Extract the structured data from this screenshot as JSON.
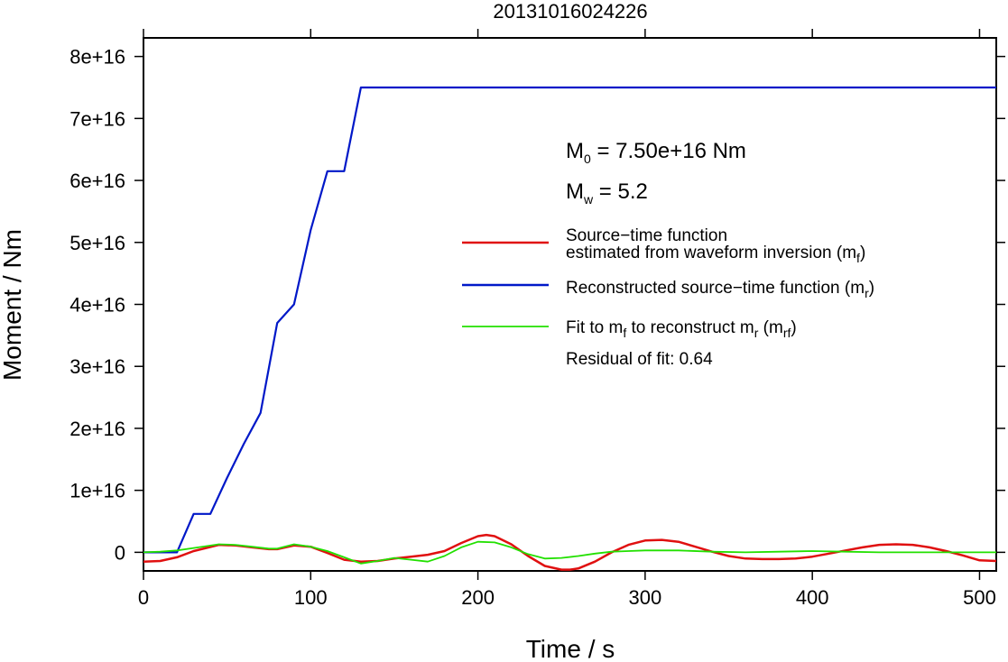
{
  "chart_data": {
    "type": "line",
    "title": "20131016024226",
    "xlabel": "Time / s",
    "ylabel": "Moment / Nm",
    "xlim": [
      0,
      510
    ],
    "ylim": [
      -3000000000000000,
      83000000000000000
    ],
    "x_ticks": [
      0,
      100,
      200,
      300,
      400,
      500
    ],
    "y_ticks": [
      0,
      1e+16,
      2e+16,
      3e+16,
      4e+16,
      5e+16,
      6e+16,
      7e+16,
      8e+16
    ],
    "x_tick_labels": [
      "0",
      "100",
      "200",
      "300",
      "400",
      "500"
    ],
    "y_tick_labels": [
      "0",
      "1e+16",
      "2e+16",
      "3e+16",
      "4e+16",
      "5e+16",
      "6e+16",
      "7e+16",
      "8e+16"
    ],
    "grid": false,
    "legend_position": "right",
    "annotations": {
      "m0_main": "M",
      "m0_sub": "0",
      "m0_rest": " = 7.50e+16 Nm",
      "mw_main": "M",
      "mw_sub": "w",
      "mw_rest": " = 5.2",
      "residual": "Residual of fit: 0.64"
    },
    "legend": {
      "mf_line1": "Source−time function",
      "mf_line2": "estimated from waveform inversion (m",
      "mf_sub": "f",
      "mf_close": ")",
      "mr_text": "Reconstructed source−time function (m",
      "mr_sub": "r",
      "mr_close": ")",
      "mrf_a": "Fit to m",
      "mrf_a_sub": "f",
      "mrf_b": " to reconstruct m",
      "mrf_b_sub": "r",
      "mrf_c": " (m",
      "mrf_c_sub": "rf",
      "mrf_close": ")"
    },
    "series": [
      {
        "key": "mr",
        "color": "#0018c8",
        "x": [
          0,
          20,
          30,
          40,
          50,
          60,
          70,
          80,
          90,
          100,
          110,
          120,
          130,
          510
        ],
        "values": [
          0,
          0,
          6200000000000000.0,
          6200000000000000.0,
          1.2e+16,
          1.75e+16,
          2.25e+16,
          3.7e+16,
          4e+16,
          5.2e+16,
          6.15e+16,
          6.15e+16,
          7.5e+16,
          7.5e+16
        ]
      },
      {
        "key": "mf",
        "color": "#e01010",
        "x": [
          0,
          10,
          20,
          30,
          45,
          55,
          65,
          75,
          80,
          90,
          100,
          110,
          120,
          130,
          140,
          150,
          160,
          170,
          180,
          190,
          200,
          205,
          210,
          220,
          230,
          240,
          250,
          255,
          260,
          270,
          280,
          290,
          300,
          310,
          320,
          330,
          340,
          350,
          360,
          370,
          380,
          390,
          400,
          410,
          420,
          430,
          440,
          450,
          460,
          470,
          480,
          490,
          500,
          510
        ],
        "values": [
          -1500000000000000.0,
          -1400000000000000.0,
          -800000000000000.0,
          200000000000000.0,
          1200000000000000.0,
          1100000000000000.0,
          800000000000000.0,
          500000000000000.0,
          500000000000000.0,
          1100000000000000.0,
          900000000000000.0,
          -100000000000000.0,
          -1200000000000000.0,
          -1500000000000000.0,
          -1400000000000000.0,
          -1000000000000000.0,
          -700000000000000.0,
          -400000000000000.0,
          200000000000000.0,
          1500000000000000.0,
          2600000000000000.0,
          2800000000000000.0,
          2600000000000000.0,
          1300000000000000.0,
          -600000000000000.0,
          -2200000000000000.0,
          -2800000000000000.0,
          -2800000000000000.0,
          -2600000000000000.0,
          -1500000000000000.0,
          0,
          1200000000000000.0,
          1900000000000000.0,
          2000000000000000.0,
          1700000000000000.0,
          900000000000000.0,
          100000000000000.0,
          -600000000000000.0,
          -1000000000000000.0,
          -1100000000000000.0,
          -1100000000000000.0,
          -1000000000000000.0,
          -700000000000000.0,
          -200000000000000.0,
          300000000000000.0,
          800000000000000.0,
          1200000000000000.0,
          1300000000000000.0,
          1200000000000000.0,
          800000000000000.0,
          200000000000000.0,
          -500000000000000.0,
          -1300000000000000.0,
          -1400000000000000.0
        ]
      },
      {
        "key": "mrf",
        "color": "#22e000",
        "x": [
          0,
          10,
          20,
          30,
          45,
          55,
          65,
          75,
          80,
          90,
          100,
          110,
          120,
          130,
          140,
          150,
          160,
          170,
          180,
          190,
          200,
          210,
          220,
          230,
          240,
          250,
          260,
          270,
          280,
          290,
          300,
          320,
          340,
          360,
          380,
          400,
          420,
          440,
          460,
          480,
          500,
          510
        ],
        "values": [
          0,
          100000000000000.0,
          300000000000000.0,
          700000000000000.0,
          1300000000000000.0,
          1200000000000000.0,
          900000000000000.0,
          600000000000000.0,
          600000000000000.0,
          1300000000000000.0,
          900000000000000.0,
          200000000000000.0,
          -800000000000000.0,
          -1800000000000000.0,
          -1400000000000000.0,
          -900000000000000.0,
          -1200000000000000.0,
          -1500000000000000.0,
          -600000000000000.0,
          800000000000000.0,
          1700000000000000.0,
          1600000000000000.0,
          800000000000000.0,
          -300000000000000.0,
          -1000000000000000.0,
          -900000000000000.0,
          -600000000000000.0,
          -200000000000000.0,
          100000000000000.0,
          200000000000000.0,
          300000000000000.0,
          300000000000000.0,
          100000000000000.0,
          0,
          100000000000000.0,
          200000000000000.0,
          100000000000000.0,
          0,
          0,
          0,
          0,
          0
        ]
      }
    ]
  }
}
